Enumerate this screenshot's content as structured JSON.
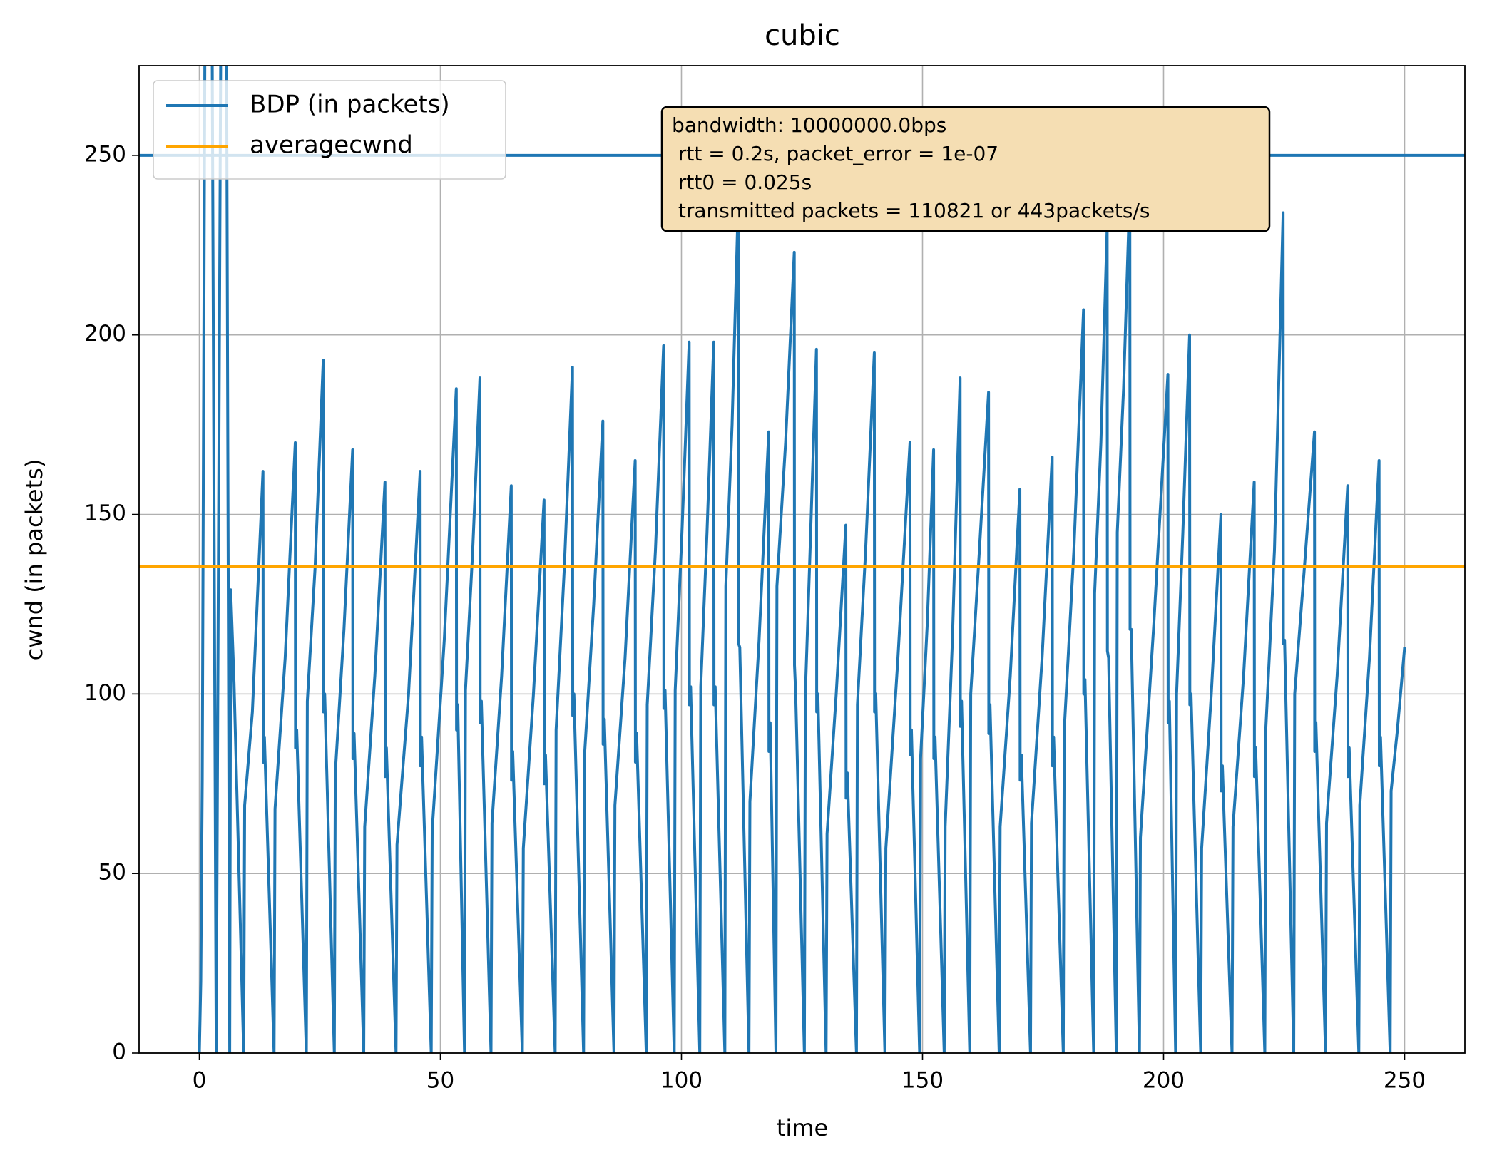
{
  "chart_data": {
    "type": "line",
    "title": "cubic",
    "x_label": "time",
    "y_label": "cwnd (in packets)",
    "xlim": [
      -12.5,
      262.5
    ],
    "ylim": [
      0,
      275
    ],
    "xticks": [
      0,
      50,
      100,
      150,
      200,
      250
    ],
    "yticks": [
      0,
      50,
      100,
      150,
      200,
      250
    ],
    "grid": true,
    "legend": "upper left",
    "annotation": [
      "bandwidth: 10000000.0bps",
      " rtt = 0.2s, packet_error = 1e-07",
      " rtt0 = 0.025s",
      " transmitted packets = 110821 or 443packets/s"
    ],
    "series": [
      {
        "color": "#1f77b4",
        "x": [
          0,
          0.3,
          0.6,
          1.2,
          2.6,
          3.5,
          4.5,
          5.6,
          6.3,
          6.5,
          7.2,
          9.2,
          9.4,
          11,
          13.2,
          13.25,
          13.5,
          15.5,
          15.7,
          17.8,
          19.9,
          19.95,
          20.2,
          22.2,
          22.4,
          24,
          25.7,
          25.75,
          26,
          28,
          28.2,
          30,
          31.8,
          31.85,
          32.1,
          34.1,
          34.3,
          36.4,
          38.5,
          38.55,
          38.8,
          40.8,
          41,
          43.4,
          45.8,
          45.85,
          46.1,
          48.1,
          48.3,
          50.8,
          53.3,
          53.35,
          53.6,
          55,
          55.2,
          56.7,
          58.2,
          58.25,
          58.5,
          60.5,
          60.7,
          62.7,
          64.7,
          64.75,
          65,
          67,
          67.2,
          69.3,
          71.5,
          71.55,
          71.8,
          73.8,
          74,
          75.7,
          77.4,
          77.45,
          77.7,
          79.7,
          79.9,
          81.8,
          83.7,
          83.75,
          84,
          86,
          86.2,
          88.3,
          90.4,
          90.45,
          90.7,
          92.7,
          92.9,
          94.6,
          96.3,
          96.35,
          96.6,
          98.5,
          98.7,
          100.1,
          101.6,
          101.65,
          101.9,
          103.8,
          104,
          105.3,
          106.7,
          106.75,
          107,
          109,
          109.2,
          110.5,
          111.8,
          111.85,
          112.1,
          114,
          114.2,
          116.1,
          118.1,
          118.15,
          118.4,
          119.6,
          119.8,
          121.6,
          123.4,
          123.45,
          123.7,
          125.5,
          125.7,
          126.8,
          128,
          128.05,
          128.3,
          130,
          130.2,
          132.1,
          134.1,
          134.15,
          134.4,
          136.3,
          136.5,
          138.2,
          140,
          140.05,
          140.3,
          142.2,
          142.4,
          144.9,
          147.4,
          147.45,
          147.7,
          149.4,
          149.6,
          151,
          152.3,
          152.35,
          152.6,
          154.5,
          154.7,
          156.2,
          157.8,
          157.85,
          158.1,
          159.8,
          160,
          161.8,
          163.7,
          163.75,
          164,
          165.9,
          166.1,
          168.2,
          170.2,
          170.25,
          170.5,
          172.4,
          172.6,
          174.8,
          176.9,
          176.95,
          177.2,
          179.2,
          179.4,
          181.4,
          183.4,
          183.45,
          183.7,
          185.5,
          185.7,
          187,
          188.3,
          188.35,
          188.6,
          190.2,
          190.4,
          191.7,
          193,
          193.05,
          193.3,
          195,
          195.2,
          198,
          200.9,
          200.95,
          201.2,
          202.5,
          202.7,
          204,
          205.4,
          205.45,
          205.7,
          207.7,
          207.9,
          209.9,
          211.9,
          211.95,
          212.2,
          214.2,
          214.4,
          216.6,
          218.8,
          218.85,
          219.1,
          221,
          221.2,
          223,
          224.8,
          224.85,
          225.1,
          227,
          227.2,
          229.2,
          231.3,
          231.35,
          231.6,
          233.6,
          233.8,
          236,
          238.2,
          238.25,
          238.5,
          240.5,
          240.7,
          242.7,
          244.7,
          244.75,
          245,
          247,
          247.2,
          248.5,
          250
        ],
        "values": [
          0,
          20,
          76,
          300,
          300,
          0,
          300,
          300,
          0,
          129,
          103,
          0,
          69,
          95,
          162,
          81,
          88,
          0,
          68,
          110,
          170,
          85,
          90,
          0,
          98,
          135,
          193,
          95,
          100,
          0,
          78,
          118,
          168,
          82,
          89,
          0,
          63,
          105,
          159,
          77,
          85,
          0,
          58,
          100,
          162,
          80,
          88,
          0,
          62,
          115,
          185,
          90,
          97,
          0,
          101,
          140,
          188,
          92,
          98,
          0,
          64,
          105,
          158,
          76,
          84,
          0,
          57,
          100,
          154,
          75,
          83,
          0,
          90,
          135,
          191,
          94,
          100,
          0,
          83,
          125,
          176,
          86,
          93,
          0,
          69,
          110,
          165,
          81,
          89,
          0,
          97,
          140,
          197,
          96,
          101,
          0,
          101,
          145,
          198,
          97,
          102,
          0,
          102,
          145,
          198,
          97,
          102,
          0,
          130,
          175,
          238,
          114,
          113,
          0,
          70,
          115,
          173,
          84,
          92,
          0,
          130,
          170,
          223,
          108,
          100,
          0,
          100,
          145,
          196,
          95,
          100,
          0,
          61,
          100,
          147,
          71,
          78,
          0,
          97,
          140,
          195,
          95,
          100,
          0,
          57,
          110,
          170,
          83,
          90,
          0,
          82,
          120,
          168,
          82,
          88,
          0,
          63,
          115,
          188,
          91,
          98,
          0,
          100,
          140,
          184,
          89,
          97,
          0,
          63,
          105,
          157,
          76,
          83,
          0,
          64,
          110,
          166,
          80,
          88,
          0,
          90,
          140,
          207,
          100,
          104,
          0,
          128,
          170,
          230,
          112,
          110,
          0,
          145,
          185,
          240,
          118,
          118,
          0,
          60,
          120,
          189,
          92,
          98,
          0,
          100,
          145,
          200,
          97,
          100,
          0,
          57,
          100,
          150,
          73,
          80,
          0,
          63,
          105,
          159,
          77,
          85,
          0,
          90,
          140,
          234,
          114,
          115,
          0,
          100,
          135,
          173,
          84,
          92,
          0,
          64,
          105,
          158,
          77,
          85,
          0,
          69,
          110,
          165,
          80,
          88,
          0,
          73,
          90,
          113
        ]
      },
      {
        "name": "BDP (in packets)",
        "color": "#1f77b4",
        "value": 250
      },
      {
        "name": "averagecwnd",
        "color": "#ffa500",
        "value": 135.5
      }
    ]
  }
}
